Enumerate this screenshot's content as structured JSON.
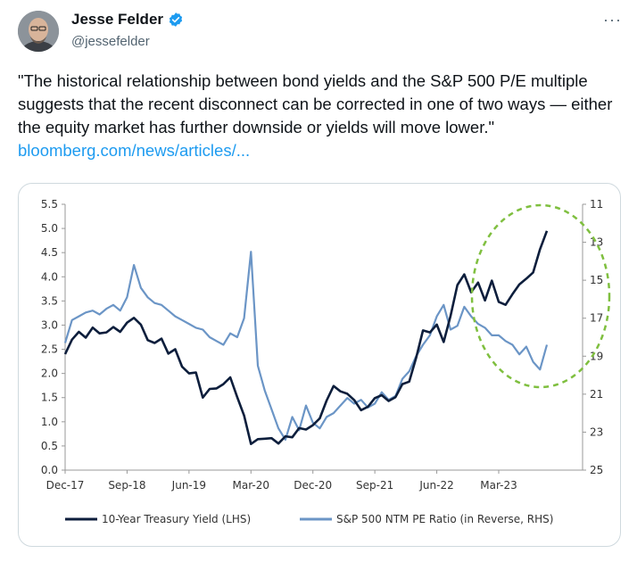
{
  "author": {
    "display_name": "Jesse Felder",
    "handle": "@jessefelder",
    "verified": true,
    "avatar": "avatar-photo"
  },
  "menu": {
    "more_label": "···",
    "icon": "more-horizontal-icon"
  },
  "tweet": {
    "text": "\"The historical relationship between bond yields and the S&P 500 P/E multiple suggests that the recent disconnect can be corrected in one of two ways — either the equity market has further downside or yields will move lower.\"",
    "link_text": "bloomberg.com/news/articles/..."
  },
  "colors": {
    "yield_series": "#0d1e3c",
    "pe_series": "#6b95c6",
    "highlight_circle": "#7fbf3f",
    "link": "#1d9bf0"
  },
  "chart_data": {
    "type": "line",
    "title": "",
    "xlabel": "",
    "ylabel": "",
    "x_ticks": [
      "Dec-17",
      "Sep-18",
      "Jun-19",
      "Mar-20",
      "Dec-20",
      "Sep-21",
      "Jun-22",
      "Mar-23"
    ],
    "y_left": {
      "ylim": [
        0,
        5.5
      ],
      "ticks": [
        "5.5",
        "5.0",
        "4.5",
        "4.0",
        "3.5",
        "3.0",
        "2.5",
        "2.0",
        "1.5",
        "1.0",
        "0.5",
        "0.0"
      ]
    },
    "y_right": {
      "ylim": [
        11,
        25
      ],
      "reversed": true,
      "ticks": [
        "11",
        "13",
        "15",
        "17",
        "19",
        "21",
        "23",
        "25"
      ]
    },
    "grid": false,
    "legend_position": "bottom",
    "annotation": "dashed green circle around the mid-2022 to 2023 divergence",
    "series": [
      {
        "name": "10-Year Treasury Yield (LHS)",
        "axis": "left",
        "points": [
          [
            "2017-12",
            2.4
          ],
          [
            "2018-01",
            2.7
          ],
          [
            "2018-02",
            2.86
          ],
          [
            "2018-03",
            2.74
          ],
          [
            "2018-04",
            2.95
          ],
          [
            "2018-05",
            2.83
          ],
          [
            "2018-06",
            2.85
          ],
          [
            "2018-07",
            2.96
          ],
          [
            "2018-08",
            2.86
          ],
          [
            "2018-09",
            3.05
          ],
          [
            "2018-10",
            3.15
          ],
          [
            "2018-11",
            3.01
          ],
          [
            "2018-12",
            2.69
          ],
          [
            "2019-01",
            2.63
          ],
          [
            "2019-02",
            2.72
          ],
          [
            "2019-03",
            2.41
          ],
          [
            "2019-04",
            2.5
          ],
          [
            "2019-05",
            2.14
          ],
          [
            "2019-06",
            2.0
          ],
          [
            "2019-07",
            2.02
          ],
          [
            "2019-08",
            1.5
          ],
          [
            "2019-09",
            1.68
          ],
          [
            "2019-10",
            1.69
          ],
          [
            "2019-11",
            1.78
          ],
          [
            "2019-12",
            1.92
          ],
          [
            "2020-01",
            1.51
          ],
          [
            "2020-02",
            1.13
          ],
          [
            "2020-03",
            0.54
          ],
          [
            "2020-04",
            0.64
          ],
          [
            "2020-05",
            0.65
          ],
          [
            "2020-06",
            0.66
          ],
          [
            "2020-07",
            0.55
          ],
          [
            "2020-08",
            0.7
          ],
          [
            "2020-09",
            0.68
          ],
          [
            "2020-10",
            0.87
          ],
          [
            "2020-11",
            0.84
          ],
          [
            "2020-12",
            0.93
          ],
          [
            "2021-01",
            1.07
          ],
          [
            "2021-02",
            1.44
          ],
          [
            "2021-03",
            1.74
          ],
          [
            "2021-04",
            1.63
          ],
          [
            "2021-05",
            1.58
          ],
          [
            "2021-06",
            1.45
          ],
          [
            "2021-07",
            1.24
          ],
          [
            "2021-08",
            1.31
          ],
          [
            "2021-09",
            1.49
          ],
          [
            "2021-10",
            1.55
          ],
          [
            "2021-11",
            1.43
          ],
          [
            "2021-12",
            1.51
          ],
          [
            "2022-01",
            1.78
          ],
          [
            "2022-02",
            1.83
          ],
          [
            "2022-03",
            2.32
          ],
          [
            "2022-04",
            2.89
          ],
          [
            "2022-05",
            2.85
          ],
          [
            "2022-06",
            3.01
          ],
          [
            "2022-07",
            2.65
          ],
          [
            "2022-08",
            3.19
          ],
          [
            "2022-09",
            3.83
          ],
          [
            "2022-10",
            4.05
          ],
          [
            "2022-11",
            3.68
          ],
          [
            "2022-12",
            3.88
          ],
          [
            "2023-01",
            3.51
          ],
          [
            "2023-02",
            3.92
          ],
          [
            "2023-03",
            3.48
          ],
          [
            "2023-04",
            3.42
          ],
          [
            "2023-05",
            3.64
          ],
          [
            "2023-06",
            3.84
          ],
          [
            "2023-07",
            3.96
          ],
          [
            "2023-08",
            4.09
          ],
          [
            "2023-09",
            4.57
          ],
          [
            "2023-10",
            4.95
          ]
        ]
      },
      {
        "name": "S&P 500 NTM PE Ratio (in Reverse, RHS)",
        "axis": "right",
        "points": [
          [
            "2017-12",
            18.3
          ],
          [
            "2018-01",
            17.1
          ],
          [
            "2018-02",
            16.9
          ],
          [
            "2018-03",
            16.7
          ],
          [
            "2018-04",
            16.6
          ],
          [
            "2018-05",
            16.8
          ],
          [
            "2018-06",
            16.5
          ],
          [
            "2018-07",
            16.3
          ],
          [
            "2018-08",
            16.6
          ],
          [
            "2018-09",
            15.9
          ],
          [
            "2018-10",
            14.2
          ],
          [
            "2018-11",
            15.4
          ],
          [
            "2018-12",
            15.9
          ],
          [
            "2019-01",
            16.2
          ],
          [
            "2019-02",
            16.3
          ],
          [
            "2019-03",
            16.6
          ],
          [
            "2019-04",
            16.9
          ],
          [
            "2019-05",
            17.1
          ],
          [
            "2019-06",
            17.3
          ],
          [
            "2019-07",
            17.5
          ],
          [
            "2019-08",
            17.6
          ],
          [
            "2019-09",
            18.0
          ],
          [
            "2019-10",
            18.2
          ],
          [
            "2019-11",
            18.4
          ],
          [
            "2019-12",
            17.8
          ],
          [
            "2020-01",
            18.0
          ],
          [
            "2020-02",
            17.0
          ],
          [
            "2020-03",
            13.5
          ],
          [
            "2020-04",
            19.5
          ],
          [
            "2020-05",
            20.8
          ],
          [
            "2020-06",
            21.8
          ],
          [
            "2020-07",
            22.8
          ],
          [
            "2020-08",
            23.4
          ],
          [
            "2020-09",
            22.2
          ],
          [
            "2020-10",
            22.9
          ],
          [
            "2020-11",
            21.6
          ],
          [
            "2020-12",
            22.5
          ],
          [
            "2021-01",
            22.8
          ],
          [
            "2021-02",
            22.2
          ],
          [
            "2021-03",
            22.0
          ],
          [
            "2021-04",
            21.6
          ],
          [
            "2021-05",
            21.2
          ],
          [
            "2021-06",
            21.5
          ],
          [
            "2021-07",
            21.3
          ],
          [
            "2021-08",
            21.7
          ],
          [
            "2021-09",
            21.5
          ],
          [
            "2021-10",
            20.9
          ],
          [
            "2021-11",
            21.3
          ],
          [
            "2021-12",
            21.1
          ],
          [
            "2022-01",
            20.2
          ],
          [
            "2022-02",
            19.8
          ],
          [
            "2022-03",
            19.0
          ],
          [
            "2022-04",
            18.4
          ],
          [
            "2022-05",
            17.9
          ],
          [
            "2022-06",
            16.9
          ],
          [
            "2022-07",
            16.3
          ],
          [
            "2022-08",
            17.6
          ],
          [
            "2022-09",
            17.4
          ],
          [
            "2022-10",
            16.4
          ],
          [
            "2022-11",
            16.9
          ],
          [
            "2022-12",
            17.3
          ],
          [
            "2023-01",
            17.5
          ],
          [
            "2023-02",
            17.9
          ],
          [
            "2023-03",
            17.9
          ],
          [
            "2023-04",
            18.2
          ],
          [
            "2023-05",
            18.4
          ],
          [
            "2023-06",
            18.9
          ],
          [
            "2023-07",
            18.5
          ],
          [
            "2023-08",
            19.3
          ],
          [
            "2023-09",
            19.7
          ],
          [
            "2023-10",
            18.4
          ]
        ]
      }
    ]
  }
}
